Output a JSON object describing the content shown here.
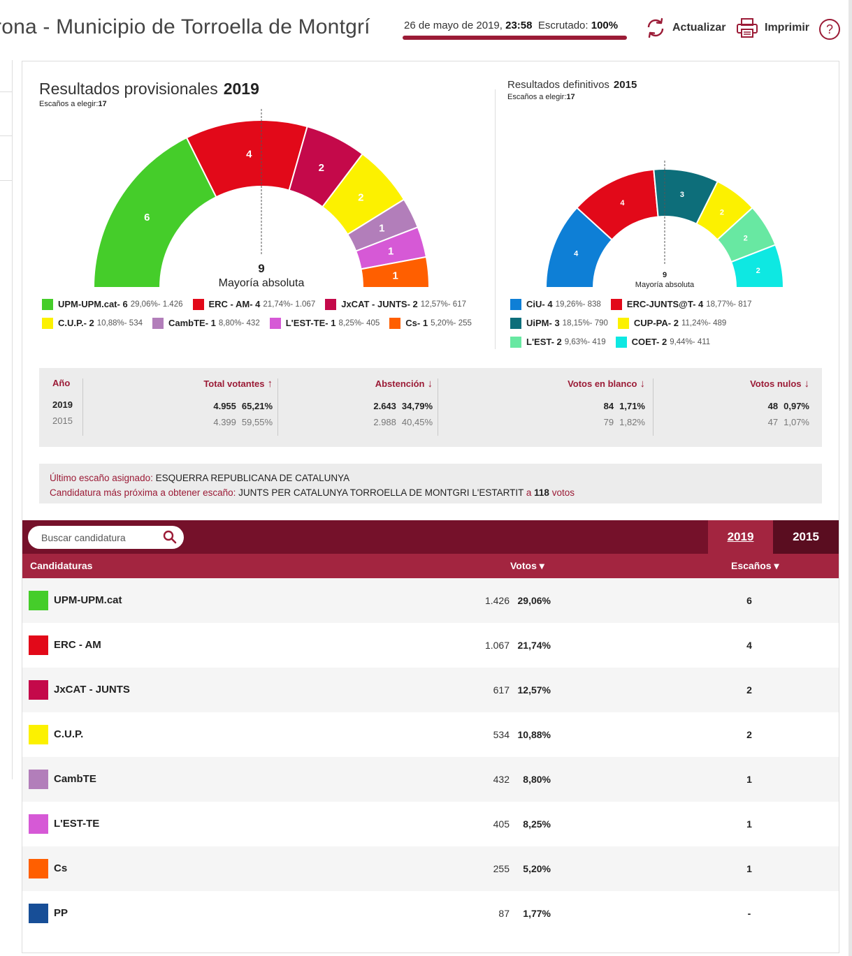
{
  "header": {
    "title": "rona - Municipio de Torroella de Montgrí",
    "status_date": "26 de mayo de 2019,",
    "status_time": "23:58",
    "status_scrutiny_label": "Escrutado:",
    "status_scrutiny_value": "100%",
    "update_label": "Actualizar",
    "print_label": "Imprimir",
    "help_label": "?",
    "accent_color": "#9b1b36"
  },
  "current": {
    "title": "Resultados provisionales",
    "year": "2019",
    "seats_label": "Escaños a elegir:",
    "seats_total": "17",
    "majority_num": "9",
    "majority_label": "Mayoría absoluta",
    "parties": [
      {
        "legend": "UPM-UPM.cat- 6",
        "meta": "29,06%- 1.426",
        "seats": 6,
        "color": "#45cd2a"
      },
      {
        "legend": "ERC - AM- 4",
        "meta": "21,74%- 1.067",
        "seats": 4,
        "color": "#e20919"
      },
      {
        "legend": "JxCAT - JUNTS- 2",
        "meta": "12,57%- 617",
        "seats": 2,
        "color": "#c4094a"
      },
      {
        "legend": "C.U.P.- 2",
        "meta": "10,88%- 534",
        "seats": 2,
        "color": "#fcf100"
      },
      {
        "legend": "CambTE- 1",
        "meta": "8,80%- 432",
        "seats": 1,
        "color": "#b27eba"
      },
      {
        "legend": "L'EST-TE- 1",
        "meta": "8,25%- 405",
        "seats": 1,
        "color": "#d659d6"
      },
      {
        "legend": "Cs- 1",
        "meta": "5,20%- 255",
        "seats": 1,
        "color": "#ff5f00"
      }
    ]
  },
  "previous": {
    "title": "Resultados definitivos",
    "year": "2015",
    "seats_label": "Escaños a elegir:",
    "seats_total": "17",
    "majority_num": "9",
    "majority_label": "Mayoría absoluta",
    "parties": [
      {
        "legend": "CiU- 4",
        "meta": "19,26%- 838",
        "seats": 4,
        "color": "#0e7fd6"
      },
      {
        "legend": "ERC-JUNTS@T- 4",
        "meta": "18,77%- 817",
        "seats": 4,
        "color": "#e20919"
      },
      {
        "legend": "UiPM- 3",
        "meta": "18,15%- 790",
        "seats": 3,
        "color": "#0d6e7a"
      },
      {
        "legend": "CUP-PA- 2",
        "meta": "11,24%- 489",
        "seats": 2,
        "color": "#fcf100"
      },
      {
        "legend": "L'EST- 2",
        "meta": "9,63%- 419",
        "seats": 2,
        "color": "#68e8a2"
      },
      {
        "legend": "COET- 2",
        "meta": "9,44%- 411",
        "seats": 2,
        "color": "#0ee8e2"
      }
    ]
  },
  "stats": {
    "headers": {
      "year": "Año",
      "total": "Total votantes",
      "abstention": "Abstención",
      "blank": "Votos en blanco",
      "null": "Votos nulos"
    },
    "rows": [
      {
        "year": "2019",
        "total": "4.955",
        "total_pct": "65,21%",
        "abst": "2.643",
        "abst_pct": "34,79%",
        "blank": "84",
        "blank_pct": "1,71%",
        "null": "48",
        "null_pct": "0,97%"
      },
      {
        "year": "2015",
        "total": "4.399",
        "total_pct": "59,55%",
        "abst": "2.988",
        "abst_pct": "40,45%",
        "blank": "79",
        "blank_pct": "1,82%",
        "null": "47",
        "null_pct": "1,07%"
      }
    ]
  },
  "info": {
    "last_seat_label": "Último escaño asignado:",
    "last_seat_value": "ESQUERRA REPUBLICANA DE CATALUNYA",
    "next_label": "Candidatura más próxima a obtener escaño:",
    "next_value": "JUNTS PER CATALUNYA TORROELLA DE MONTGRI L'ESTARTIT",
    "next_a": "a",
    "next_votes": "118",
    "next_votes_label": "votos"
  },
  "table": {
    "search_placeholder": "Buscar candidatura",
    "tab_2019": "2019",
    "tab_2015": "2015",
    "col_name": "Candidaturas",
    "col_votes": "Votos ▾",
    "col_seats": "Escaños ▾",
    "rows": [
      {
        "name": "UPM-UPM.cat",
        "votes": "1.426",
        "pct": "29,06%",
        "seats": "6",
        "color": "#45cd2a"
      },
      {
        "name": "ERC - AM",
        "votes": "1.067",
        "pct": "21,74%",
        "seats": "4",
        "color": "#e20919"
      },
      {
        "name": "JxCAT - JUNTS",
        "votes": "617",
        "pct": "12,57%",
        "seats": "2",
        "color": "#c4094a"
      },
      {
        "name": "C.U.P.",
        "votes": "534",
        "pct": "10,88%",
        "seats": "2",
        "color": "#fcf100"
      },
      {
        "name": "CambTE",
        "votes": "432",
        "pct": "8,80%",
        "seats": "1",
        "color": "#b27eba"
      },
      {
        "name": "L'EST-TE",
        "votes": "405",
        "pct": "8,25%",
        "seats": "1",
        "color": "#d659d6"
      },
      {
        "name": "Cs",
        "votes": "255",
        "pct": "5,20%",
        "seats": "1",
        "color": "#ff5f00"
      },
      {
        "name": "PP",
        "votes": "87",
        "pct": "1,77%",
        "seats": "-",
        "color": "#174e97"
      }
    ]
  }
}
